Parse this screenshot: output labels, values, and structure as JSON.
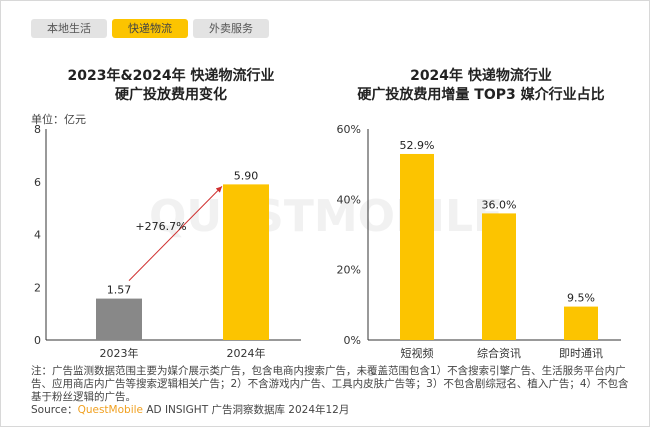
{
  "tabs": [
    {
      "label": "本地生活",
      "active": false
    },
    {
      "label": "快递物流",
      "active": true
    },
    {
      "label": "外卖服务",
      "active": false
    }
  ],
  "watermark": "QUESTMOBILE",
  "chart_data": [
    {
      "type": "bar",
      "title": "2023年&2024年 快递物流行业\n硬广投放费用变化",
      "title_lines": [
        "2023年&2024年 快递物流行业",
        "硬广投放费用变化"
      ],
      "unit": "单位：亿元",
      "categories": [
        "2023年",
        "2024年"
      ],
      "values": [
        1.57,
        5.9
      ],
      "value_labels": [
        "1.57",
        "5.90"
      ],
      "ylim": [
        0,
        8
      ],
      "yticks": [
        "0",
        "2",
        "4",
        "6",
        "8"
      ],
      "ytick_values": [
        0,
        2,
        4,
        6,
        8
      ],
      "colors": [
        "#888888",
        "#fcc400"
      ],
      "annotation": "+276.7%",
      "arrow_color": "#d03030"
    },
    {
      "type": "bar",
      "title": "2024年 快递物流行业\n硬广投放费用增量 TOP3 媒介行业占比",
      "title_lines": [
        "2024年 快递物流行业",
        "硬广投放费用增量 TOP3 媒介行业占比"
      ],
      "categories": [
        "短视频",
        "综合资讯",
        "即时通讯"
      ],
      "values": [
        52.9,
        36.0,
        9.5
      ],
      "value_labels": [
        "52.9%",
        "36.0%",
        "9.5%"
      ],
      "ylim": [
        0,
        60
      ],
      "yticks": [
        "0%",
        "20%",
        "40%",
        "60%"
      ],
      "ytick_values": [
        0,
        20,
        40,
        60
      ],
      "colors": [
        "#fcc400",
        "#fcc400",
        "#fcc400"
      ]
    }
  ],
  "footnote": "注：广告监测数据范围主要为媒介展示类广告，包含电商内搜索广告，未覆盖范围包含1）不含搜索引擎广告、生活服务平台内广告、应用商店内广告等搜索逻辑相关广告；2）不含游戏内广告、工具内皮肤广告等；3）不包含剧综冠名、植入广告；4）不包含基于粉丝逻辑的广告。",
  "source": {
    "prefix": "Source：",
    "brand": "QuestMobile",
    "rest": " AD INSIGHT 广告洞察数据库 2024年12月"
  }
}
